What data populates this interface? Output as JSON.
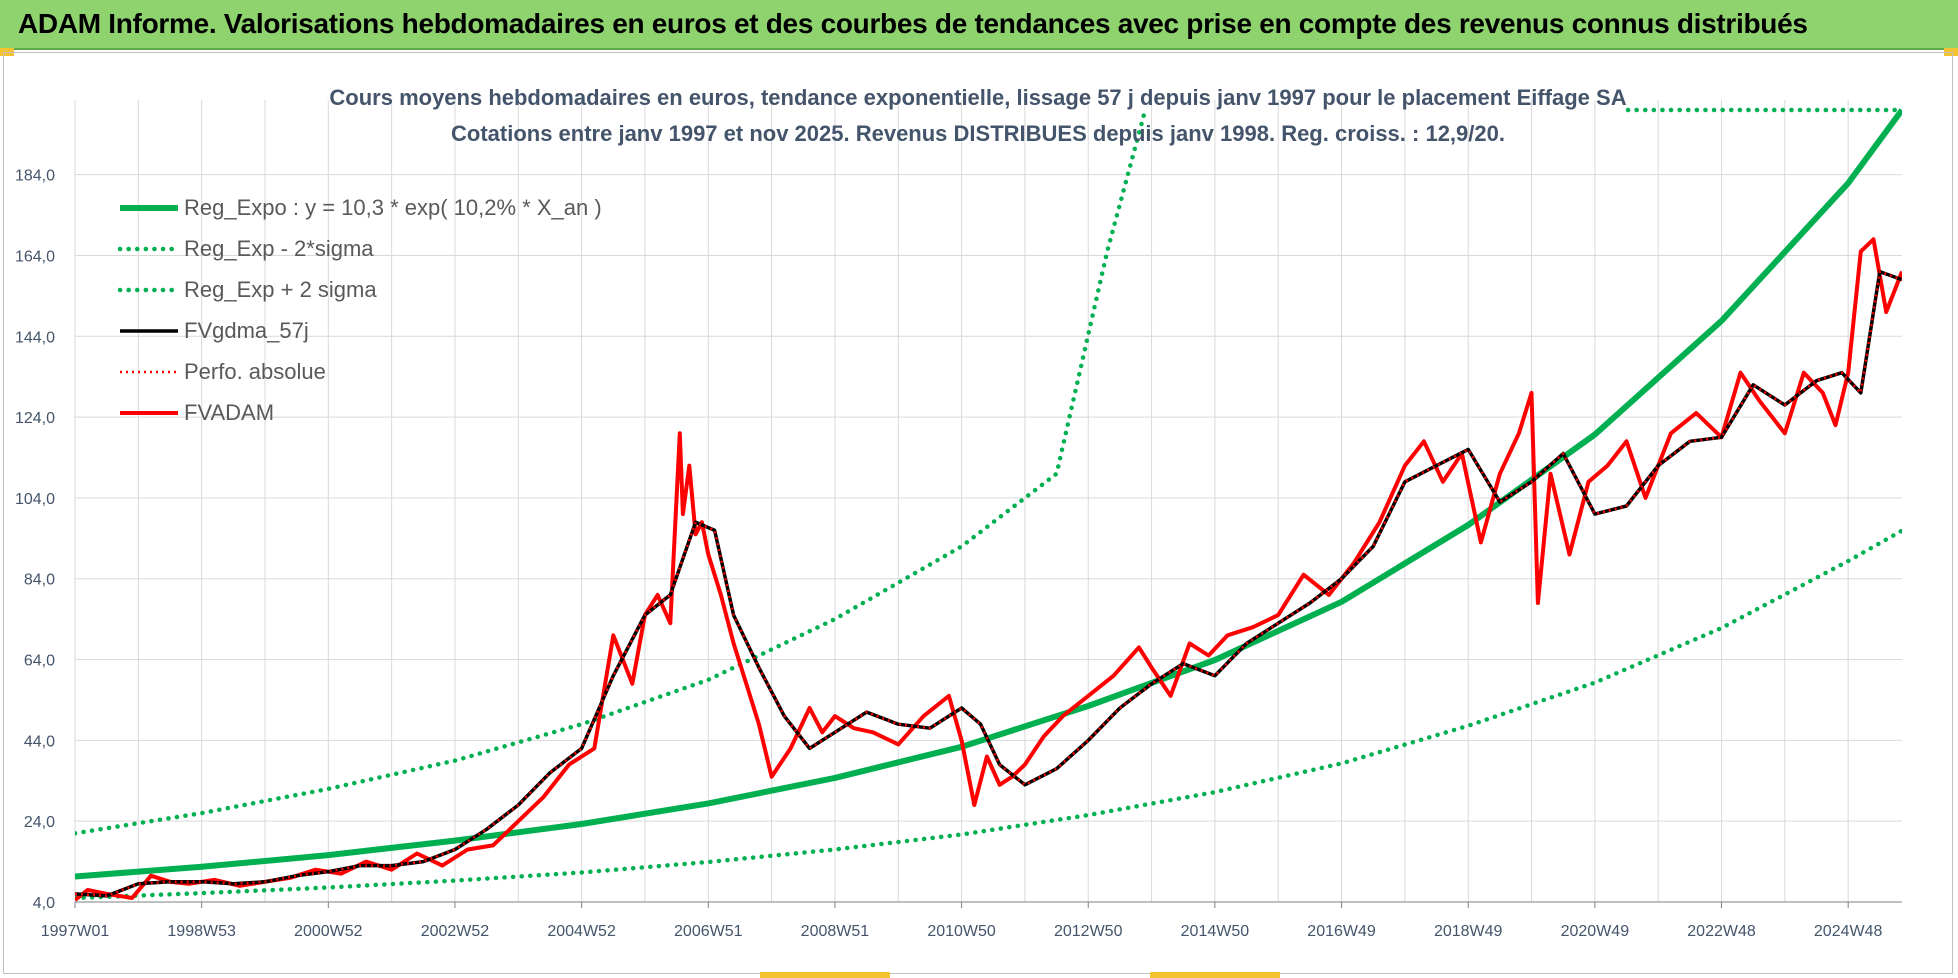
{
  "banner": {
    "title": "ADAM Informe. Valorisations hebdomadaires en euros et des courbes de tendances avec prise en compte des revenus connus distribués"
  },
  "chart_data": {
    "type": "line",
    "title": "Cours moyens hebdomadaires en euros, tendance exponentielle, lissage 57 j depuis janv 1997 pour le placement Eiffage SA",
    "subtitle": "Cotations entre janv 1997 et nov 2025. Revenus DISTRIBUES depuis janv 1998. Reg. croiss. : 12,9/20.",
    "xlabel": "",
    "ylabel": "",
    "x_range": [
      1997.0,
      2025.85
    ],
    "ylim": [
      4.0,
      200.0
    ],
    "y_ticks": [
      4.0,
      24.0,
      44.0,
      64.0,
      84.0,
      104.0,
      124.0,
      144.0,
      164.0,
      184.0
    ],
    "y_tick_labels": [
      "4,0",
      "24,0",
      "44,0",
      "64,0",
      "84,0",
      "104,0",
      "124,0",
      "144,0",
      "164,0",
      "184,0"
    ],
    "x_ticks": [
      1997.0,
      1999.0,
      2001.0,
      2003.0,
      2005.0,
      2007.0,
      2009.0,
      2011.0,
      2013.0,
      2015.0,
      2017.0,
      2019.0,
      2021.0,
      2023.0,
      2025.0
    ],
    "x_tick_labels": [
      "1997W01",
      "1998W53",
      "2000W52",
      "2002W52",
      "2004W52",
      "2006W51",
      "2008W51",
      "2010W50",
      "2012W50",
      "2014W50",
      "2016W49",
      "2018W49",
      "2020W49",
      "2022W48",
      "2024W48"
    ],
    "grid": true,
    "legend_position": "top-left",
    "colors": {
      "green": "#00b050",
      "black": "#000000",
      "red": "#ff0000",
      "grid": "#d9d9d9",
      "text": "#44546a"
    },
    "series": [
      {
        "name": "Reg_Expo : y = 10,3 * exp( 10,2% *  X_an )",
        "style": "solid-green",
        "x": [
          1997.0,
          1999.0,
          2001.0,
          2003.0,
          2005.0,
          2007.0,
          2009.0,
          2011.0,
          2013.0,
          2015.0,
          2017.0,
          2019.0,
          2021.0,
          2023.0,
          2025.0,
          2025.85
        ],
        "values": [
          10.3,
          12.7,
          15.6,
          19.2,
          23.3,
          28.4,
          34.7,
          42.4,
          52.5,
          63.9,
          78.3,
          97.3,
          119.7,
          147.8,
          181.9,
          200.0
        ]
      },
      {
        "name": "Reg_Exp - 2*sigma",
        "style": "dotted-green",
        "x": [
          1997.0,
          1999.0,
          2001.0,
          2003.0,
          2005.0,
          2007.0,
          2009.0,
          2011.0,
          2013.0,
          2015.0,
          2017.0,
          2019.0,
          2021.0,
          2023.0,
          2025.0,
          2025.85
        ],
        "values": [
          5.0,
          6.2,
          7.6,
          9.3,
          11.3,
          13.9,
          17.0,
          20.7,
          25.5,
          31.2,
          38.3,
          47.6,
          58.3,
          71.8,
          88.4,
          95.9
        ]
      },
      {
        "name": "Reg_Exp + 2 sigma",
        "style": "dotted-green",
        "x": [
          1997.0,
          1999.0,
          2001.0,
          2003.0,
          2005.0,
          2007.0,
          2009.0,
          2011.0,
          2012.5,
          2013.3,
          2013.9
        ],
        "values": [
          21.0,
          26.0,
          32.0,
          39.0,
          48.0,
          59.0,
          74.0,
          92.0,
          110.0,
          165.0,
          200.0
        ]
      },
      {
        "name": "FVgdma_57j",
        "style": "solid-black",
        "x": [
          1997.0,
          1997.5,
          1998.0,
          1998.5,
          1999.0,
          1999.5,
          2000.0,
          2000.5,
          2001.0,
          2001.5,
          2002.0,
          2002.5,
          2003.0,
          2003.5,
          2004.0,
          2004.5,
          2005.0,
          2005.5,
          2006.0,
          2006.4,
          2006.8,
          2007.1,
          2007.4,
          2007.8,
          2008.2,
          2008.6,
          2009.0,
          2009.5,
          2010.0,
          2010.5,
          2011.0,
          2011.3,
          2011.6,
          2012.0,
          2012.5,
          2013.0,
          2013.5,
          2014.0,
          2014.5,
          2015.0,
          2015.5,
          2016.0,
          2016.5,
          2017.0,
          2017.5,
          2018.0,
          2018.5,
          2019.0,
          2019.5,
          2020.0,
          2020.5,
          2021.0,
          2021.5,
          2022.0,
          2022.5,
          2023.0,
          2023.5,
          2024.0,
          2024.5,
          2024.9,
          2025.2,
          2025.5,
          2025.85
        ],
        "values": [
          6.0,
          5.5,
          8.5,
          9.0,
          9.0,
          8.5,
          9.0,
          10.5,
          11.5,
          13.0,
          13.0,
          14.0,
          17.0,
          22.0,
          28.0,
          36.0,
          42.0,
          60.0,
          75.0,
          80.0,
          98.0,
          96.0,
          75.0,
          62.0,
          50.0,
          42.0,
          46.0,
          51.0,
          48.0,
          47.0,
          52.0,
          48.0,
          38.0,
          33.0,
          37.0,
          44.0,
          52.0,
          58.0,
          63.0,
          60.0,
          68.0,
          73.0,
          78.0,
          84.0,
          92.0,
          108.0,
          112.0,
          116.0,
          103.0,
          108.0,
          115.0,
          100.0,
          102.0,
          112.0,
          118.0,
          119.0,
          132.0,
          127.0,
          133.0,
          135.0,
          130.0,
          160.0,
          158.0
        ]
      },
      {
        "name": "Perfo. absolue",
        "style": "dotted-red",
        "x": [
          1997.0,
          1997.5,
          1998.0,
          1998.5,
          1999.0,
          1999.5,
          2000.0,
          2000.5,
          2001.0,
          2001.5,
          2002.0,
          2002.5,
          2003.0,
          2003.5,
          2004.0,
          2004.5,
          2005.0,
          2005.5,
          2006.0,
          2006.4,
          2006.8,
          2007.1,
          2007.4,
          2007.8,
          2008.2,
          2008.6,
          2009.0,
          2009.5,
          2010.0,
          2010.5,
          2011.0,
          2011.3,
          2011.6,
          2012.0,
          2012.5,
          2013.0,
          2013.5,
          2014.0,
          2014.5,
          2015.0,
          2015.5,
          2016.0,
          2016.5,
          2017.0,
          2017.5,
          2018.0,
          2018.5,
          2019.0,
          2019.5,
          2020.0,
          2020.5,
          2021.0,
          2021.5,
          2022.0,
          2022.5,
          2023.0,
          2023.5,
          2024.0,
          2024.5,
          2024.9,
          2025.2,
          2025.5,
          2025.85
        ],
        "values": [
          6.0,
          5.5,
          8.5,
          9.0,
          9.0,
          8.5,
          9.0,
          10.5,
          11.5,
          13.0,
          13.0,
          14.0,
          17.0,
          22.0,
          28.0,
          36.0,
          42.0,
          60.0,
          75.0,
          80.0,
          98.0,
          96.0,
          75.0,
          62.0,
          50.0,
          42.0,
          46.0,
          51.0,
          48.0,
          47.0,
          52.0,
          48.0,
          38.0,
          33.0,
          37.0,
          44.0,
          52.0,
          58.0,
          63.0,
          60.0,
          68.0,
          73.0,
          78.0,
          84.0,
          92.0,
          108.0,
          112.0,
          116.0,
          103.0,
          108.0,
          115.0,
          100.0,
          102.0,
          112.0,
          118.0,
          119.0,
          132.0,
          127.0,
          133.0,
          135.0,
          130.0,
          160.0,
          158.0
        ]
      },
      {
        "name": "FVADAM",
        "style": "solid-red",
        "x": [
          1997.0,
          1997.2,
          1997.5,
          1997.9,
          1998.2,
          1998.5,
          1998.8,
          1999.2,
          1999.6,
          2000.0,
          2000.4,
          2000.8,
          2001.2,
          2001.6,
          2002.0,
          2002.4,
          2002.8,
          2003.2,
          2003.6,
          2004.0,
          2004.4,
          2004.8,
          2005.2,
          2005.5,
          2005.8,
          2006.0,
          2006.2,
          2006.4,
          2006.55,
          2006.6,
          2006.7,
          2006.8,
          2006.9,
          2007.0,
          2007.2,
          2007.4,
          2007.6,
          2007.8,
          2008.0,
          2008.3,
          2008.6,
          2008.8,
          2009.0,
          2009.3,
          2009.6,
          2010.0,
          2010.4,
          2010.8,
          2011.0,
          2011.2,
          2011.4,
          2011.6,
          2011.8,
          2012.0,
          2012.3,
          2012.6,
          2013.0,
          2013.4,
          2013.8,
          2014.0,
          2014.3,
          2014.6,
          2014.9,
          2015.2,
          2015.6,
          2016.0,
          2016.4,
          2016.8,
          2017.2,
          2017.6,
          2018.0,
          2018.3,
          2018.6,
          2018.9,
          2019.2,
          2019.5,
          2019.8,
          2020.0,
          2020.1,
          2020.3,
          2020.6,
          2020.9,
          2021.2,
          2021.5,
          2021.8,
          2022.2,
          2022.6,
          2023.0,
          2023.3,
          2023.6,
          2024.0,
          2024.3,
          2024.6,
          2024.8,
          2025.0,
          2025.2,
          2025.4,
          2025.6,
          2025.85
        ],
        "values": [
          4.5,
          7.0,
          6.0,
          5.0,
          10.5,
          9.0,
          8.5,
          9.5,
          8.0,
          9.0,
          10.0,
          12.0,
          11.0,
          14.0,
          12.0,
          16.0,
          13.0,
          17.0,
          18.0,
          24.0,
          30.0,
          38.0,
          42.0,
          70.0,
          58.0,
          75.0,
          80.0,
          73.0,
          120.0,
          100.0,
          112.0,
          95.0,
          98.0,
          90.0,
          80.0,
          68.0,
          58.0,
          48.0,
          35.0,
          42.0,
          52.0,
          46.0,
          50.0,
          47.0,
          46.0,
          43.0,
          50.0,
          55.0,
          44.0,
          28.0,
          40.0,
          33.0,
          35.0,
          38.0,
          45.0,
          50.0,
          55.0,
          60.0,
          67.0,
          62.0,
          55.0,
          68.0,
          65.0,
          70.0,
          72.0,
          75.0,
          85.0,
          80.0,
          88.0,
          98.0,
          112.0,
          118.0,
          108.0,
          115.0,
          93.0,
          110.0,
          120.0,
          130.0,
          78.0,
          110.0,
          90.0,
          108.0,
          112.0,
          118.0,
          104.0,
          120.0,
          125.0,
          119.0,
          135.0,
          128.0,
          120.0,
          135.0,
          130.0,
          122.0,
          135.0,
          165.0,
          168.0,
          150.0,
          160.0
        ]
      }
    ]
  }
}
